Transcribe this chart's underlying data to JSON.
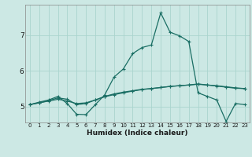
{
  "xlabel": "Humidex (Indice chaleur)",
  "bg_color": "#cce8e4",
  "grid_color": "#aad4ce",
  "line_color": "#1a6e64",
  "x_values": [
    0,
    1,
    2,
    3,
    4,
    5,
    6,
    7,
    8,
    9,
    10,
    11,
    12,
    13,
    14,
    15,
    16,
    17,
    18,
    19,
    20,
    21,
    22,
    23
  ],
  "line_main": [
    5.05,
    5.12,
    5.18,
    5.28,
    5.08,
    4.78,
    4.77,
    5.05,
    5.32,
    5.82,
    6.05,
    6.48,
    6.65,
    6.72,
    7.62,
    7.08,
    6.98,
    6.82,
    5.38,
    5.28,
    5.18,
    4.58,
    5.08,
    5.05
  ],
  "line_flat1": [
    5.05,
    5.1,
    5.15,
    5.2,
    5.15,
    5.08,
    5.1,
    5.18,
    5.28,
    5.35,
    5.4,
    5.44,
    5.48,
    5.5,
    5.53,
    5.56,
    5.58,
    5.6,
    5.63,
    5.6,
    5.58,
    5.55,
    5.52,
    5.5
  ],
  "line_flat2": [
    5.05,
    5.1,
    5.16,
    5.24,
    5.2,
    5.05,
    5.08,
    5.18,
    5.27,
    5.33,
    5.38,
    5.43,
    5.47,
    5.5,
    5.53,
    5.56,
    5.58,
    5.6,
    5.62,
    5.6,
    5.57,
    5.54,
    5.51,
    5.5
  ],
  "ylim": [
    4.55,
    7.85
  ],
  "yticks": [
    5,
    6,
    7
  ],
  "xtick_labels": [
    "0",
    "1",
    "2",
    "3",
    "4",
    "5",
    "6",
    "7",
    "8",
    "9",
    "10",
    "11",
    "12",
    "13",
    "14",
    "15",
    "16",
    "17",
    "18",
    "19",
    "20",
    "21",
    "22",
    "23"
  ]
}
